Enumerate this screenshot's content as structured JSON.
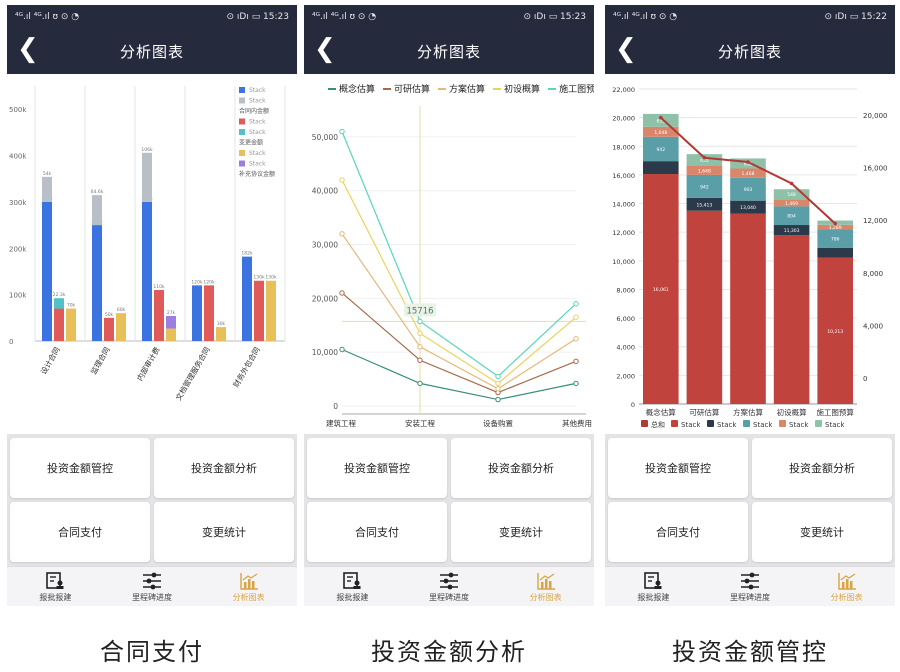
{
  "status": {
    "left": "⁴ᴳ.ıl ⁴ᴳ.ıl ʊ ⊙ ◔",
    "right_1": "⊙ ıDı ▭ 15:23",
    "right_2": "⊙ ıDı ▭ 15:23",
    "right_3": "⊙ ıDı ▭ 15:22"
  },
  "navbar": {
    "back": "❮",
    "title": "分析图表"
  },
  "buttons": {
    "investment_control": "投资金额管控",
    "investment_analysis": "投资金额分析",
    "contract_payment": "合同支付",
    "change_statistics": "变更统计"
  },
  "tabs": [
    {
      "label": "报批报建",
      "icon": "form-user-icon"
    },
    {
      "label": "里程碑进度",
      "icon": "sliders-icon"
    },
    {
      "label": "分析图表",
      "icon": "bar-chart-icon"
    }
  ],
  "captions": {
    "c1": "合同支付",
    "c2": "投资金额分析",
    "c3": "投资金额管控"
  },
  "colors": {
    "dark_nav": "#262a3d",
    "blue": "#3b73e0",
    "gray": "#b8bfc6",
    "red": "#e05a5a",
    "teal": "#4fc3c9",
    "yellow": "#e8c05a",
    "purple": "#9b7ee0",
    "dark_red": "#b23a34",
    "active_tab": "#d9a441"
  },
  "chart_data": [
    {
      "type": "bar",
      "ylim": [
        0,
        550000
      ],
      "y_ticks": [
        "0",
        "100k",
        "200k",
        "300k",
        "400k",
        "500k"
      ],
      "categories": [
        "设计合同",
        "监理合同",
        "内部审计费",
        "文档管理服务合同",
        "财务外包合同"
      ],
      "legend": [
        "Stack",
        "Stack",
        "合同内金额",
        "Stack",
        "Stack",
        "变更金额",
        "Stack",
        "Stack",
        "补充协议金额"
      ],
      "legend_colors": [
        "#3b73e0",
        "#b8bfc6",
        "",
        "#e05a5a",
        "#4fc3c9",
        "",
        "#e8c05a",
        "#9b7ee0",
        ""
      ],
      "series": [
        {
          "name": "Stack",
          "color": "#3b73e0",
          "group": 0,
          "values": [
            300000,
            250000,
            300000,
            120000,
            182000
          ]
        },
        {
          "name": "Stack",
          "color": "#b8bfc6",
          "group": 0,
          "values": [
            54000,
            64600,
            106000,
            0,
            0
          ]
        },
        {
          "name": "Stack",
          "color": "#e05a5a",
          "group": 1,
          "values": [
            70000,
            50000,
            110000,
            120000,
            130000
          ]
        },
        {
          "name": "Stack",
          "color": "#4fc3c9",
          "group": 1,
          "values": [
            22300,
            0,
            0,
            0,
            0
          ]
        },
        {
          "name": "Stack",
          "color": "#e8c05a",
          "group": 2,
          "values": [
            70000,
            60000,
            27000,
            30000,
            130000
          ]
        },
        {
          "name": "Stack",
          "color": "#9b7ee0",
          "group": 2,
          "values": [
            0,
            0,
            27000,
            0,
            0
          ]
        }
      ],
      "labels": [
        [
          "300k",
          "250k",
          "300k",
          "120k",
          "182k"
        ],
        [
          "54k",
          "64.6k",
          "106k",
          "",
          ""
        ],
        [
          "",
          "50k",
          "110k",
          "120k",
          "130k"
        ],
        [
          "22.3k",
          "",
          "",
          "",
          ""
        ],
        [
          "70k",
          "60k",
          "",
          "30k",
          "130k"
        ],
        [
          "",
          "",
          "27k",
          "",
          ""
        ]
      ]
    },
    {
      "type": "line",
      "ylim": [
        0,
        55000
      ],
      "y_ticks": [
        "0",
        "10,000",
        "20,000",
        "30,000",
        "40,000",
        "50,000"
      ],
      "categories": [
        "建筑工程",
        "安装工程",
        "设备购置",
        "其他费用"
      ],
      "highlight_value": "15716",
      "series": [
        {
          "name": "概念估算",
          "color": "#3a8f7a",
          "values": [
            10500,
            4200,
            1200,
            4200
          ]
        },
        {
          "name": "可研估算",
          "color": "#a86a4a",
          "values": [
            21000,
            8500,
            2500,
            8300
          ]
        },
        {
          "name": "方案估算",
          "color": "#e6b87a",
          "values": [
            32000,
            11000,
            3200,
            12500
          ]
        },
        {
          "name": "初设概算",
          "color": "#e8d45a",
          "values": [
            42000,
            13500,
            4200,
            16500
          ]
        },
        {
          "name": "施工图预",
          "color": "#58d6b8",
          "values": [
            51000,
            15716,
            5500,
            19000
          ]
        }
      ]
    },
    {
      "type": "bar",
      "ylim": [
        0,
        22000
      ],
      "y_ticks": [
        "0",
        "2,000",
        "4,000",
        "6,000",
        "8,000",
        "10,000",
        "12,000",
        "14,000",
        "16,000",
        "18,000",
        "20,000",
        "22,000"
      ],
      "y2_ticks": [
        "0",
        "4,000",
        "8,000",
        "12,000",
        "16,000",
        "20,000"
      ],
      "categories": [
        "概念估算",
        "可研估算",
        "方案估算",
        "初设概算",
        "施工图预算"
      ],
      "legend": [
        "总和",
        "Stack",
        "Stack",
        "Stack",
        "Stack",
        "Stack"
      ],
      "legend_colors": [
        "#b23a34",
        "#c0433d",
        "#2b3a4a",
        "#5a9ea8",
        "#d9866a",
        "#8fc1a9"
      ],
      "series": [
        {
          "name": "Stack",
          "color": "#c0433d",
          "values": [
            16061,
            13500,
            13300,
            11800,
            10213
          ]
        },
        {
          "name": "Stack",
          "color": "#2b3a4a",
          "values": [
            900,
            900,
            900,
            700,
            700
          ]
        },
        {
          "name": "Stack",
          "color": "#5a9ea8",
          "values": [
            1700,
            1600,
            1600,
            1300,
            1300
          ]
        },
        {
          "name": "Stack",
          "color": "#d9866a",
          "values": [
            700,
            650,
            650,
            500,
            300
          ]
        },
        {
          "name": "Stack",
          "color": "#8fc1a9",
          "values": [
            900,
            800,
            700,
            700,
            300
          ]
        }
      ],
      "labels": [
        [
          "16,061",
          "",
          "",
          "",
          "10,213"
        ],
        [
          "",
          "15,413",
          "13,040",
          "11,303",
          ""
        ],
        [
          "942",
          "942",
          "903",
          "804",
          "786"
        ],
        [
          "1,648",
          "1,648",
          "1,468",
          "1,469",
          "1,289"
        ],
        [
          "655",
          "655",
          "602",
          "548",
          ""
        ]
      ],
      "totals_line": {
        "name": "总和",
        "color": "#b23a34",
        "values": [
          20000,
          17200,
          16900,
          15400,
          12600
        ]
      }
    }
  ]
}
